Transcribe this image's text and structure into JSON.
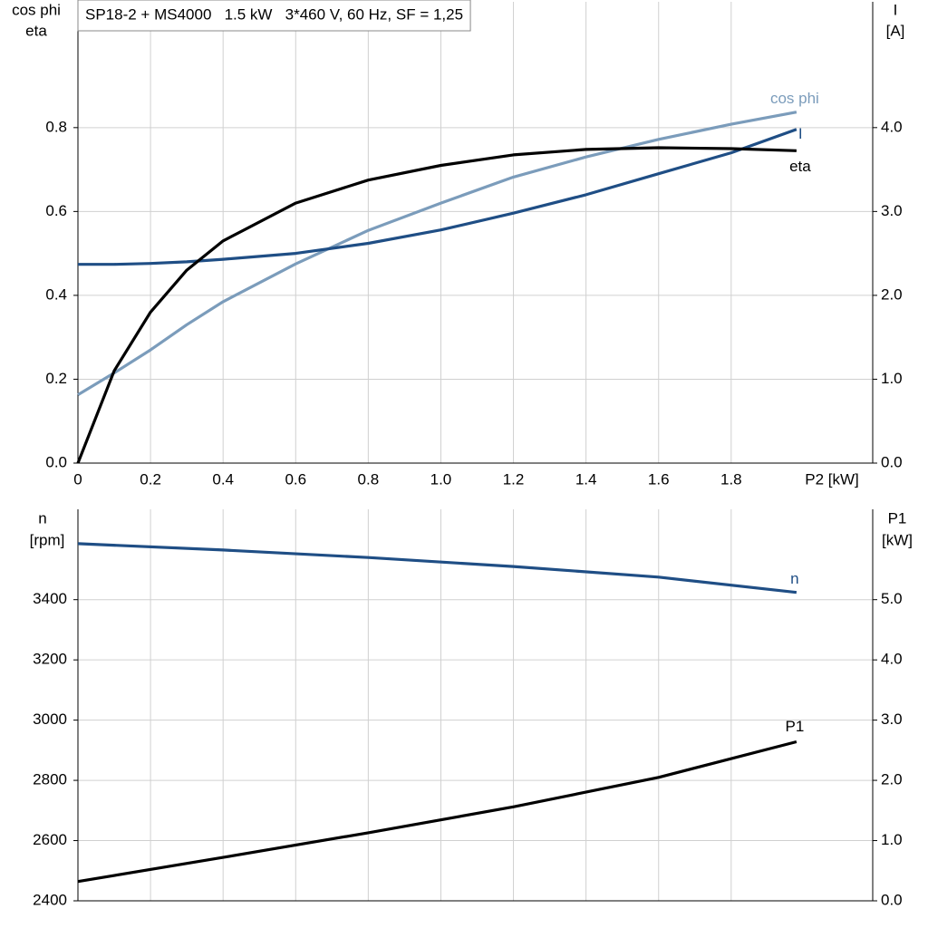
{
  "chart_data": [
    {
      "type": "line",
      "title": "SP18-2 + MS4000   1.5 kW   3*460 V, 60 Hz, SF = 1,25",
      "ylabel": [
        "cos phi",
        "eta"
      ],
      "y2label": [
        "I",
        "[A]"
      ],
      "xlabel": "P2 [kW]",
      "x": [
        0,
        0.1,
        0.2,
        0.3,
        0.4,
        0.6,
        0.8,
        1.0,
        1.2,
        1.4,
        1.6,
        1.8,
        1.98
      ],
      "series": [
        {
          "name": "cos phi",
          "color": "#7b9cbb",
          "values": [
            0.163,
            0.215,
            0.27,
            0.33,
            0.385,
            0.475,
            0.555,
            0.62,
            0.682,
            0.73,
            0.772,
            0.808,
            0.837
          ]
        },
        {
          "name": "I",
          "color": "#1f4e85",
          "axis": "y2",
          "values": [
            2.37,
            2.37,
            2.38,
            2.4,
            2.43,
            2.5,
            2.62,
            2.78,
            2.98,
            3.2,
            3.45,
            3.7,
            3.98
          ]
        },
        {
          "name": "eta",
          "color": "#000000",
          "values": [
            0,
            0.22,
            0.36,
            0.46,
            0.53,
            0.62,
            0.675,
            0.71,
            0.735,
            0.748,
            0.752,
            0.75,
            0.745
          ]
        }
      ],
      "xlim": [
        0,
        2.19
      ],
      "ylim": [
        0,
        1.1
      ],
      "y2lim": [
        0,
        5.5
      ],
      "xticks": [
        0,
        0.2,
        0.4,
        0.6,
        0.8,
        {
          "value": 1,
          "label": "1.0"
        },
        1.2,
        1.4,
        1.6,
        1.8
      ],
      "yticks": [
        {
          "value": 0,
          "label": "0.0"
        },
        0.2,
        0.4,
        0.6,
        0.8
      ],
      "y2ticks": [
        {
          "value": 0,
          "label": "0.0"
        },
        {
          "value": 1,
          "label": "1.0"
        },
        {
          "value": 2,
          "label": "2.0"
        },
        {
          "value": 3,
          "label": "3.0"
        },
        {
          "value": 4,
          "label": "4.0"
        }
      ],
      "grid": true,
      "show_xtick_labels": true
    },
    {
      "type": "line",
      "ylabel": [
        "n",
        "[rpm]"
      ],
      "y2label": [
        "P1",
        "[kW]"
      ],
      "x": [
        0,
        0.4,
        0.8,
        1.2,
        1.6,
        1.98
      ],
      "series": [
        {
          "name": "n",
          "color": "#1f4e85",
          "values": [
            3586,
            3565,
            3540,
            3510,
            3475,
            3424
          ]
        },
        {
          "name": "P1",
          "color": "#000000",
          "axis": "y2",
          "values": [
            0.32,
            0.72,
            1.13,
            1.56,
            2.05,
            2.64
          ]
        }
      ],
      "xlim": [
        0,
        2.19
      ],
      "ylim": [
        2400,
        3700
      ],
      "y2lim": [
        0,
        6.5
      ],
      "xticks": [
        0,
        0.2,
        0.4,
        0.6,
        0.8,
        1,
        1.2,
        1.4,
        1.6,
        1.8
      ],
      "yticks": [
        2400,
        2600,
        2800,
        3000,
        3200,
        3400
      ],
      "y2ticks": [
        {
          "value": 0,
          "label": "0.0"
        },
        {
          "value": 1,
          "label": "1.0"
        },
        {
          "value": 2,
          "label": "2.0"
        },
        {
          "value": 3,
          "label": "3.0"
        },
        {
          "value": 4,
          "label": "4.0"
        },
        {
          "value": 5,
          "label": "5.0"
        }
      ],
      "grid": true,
      "show_xtick_labels": false
    }
  ]
}
